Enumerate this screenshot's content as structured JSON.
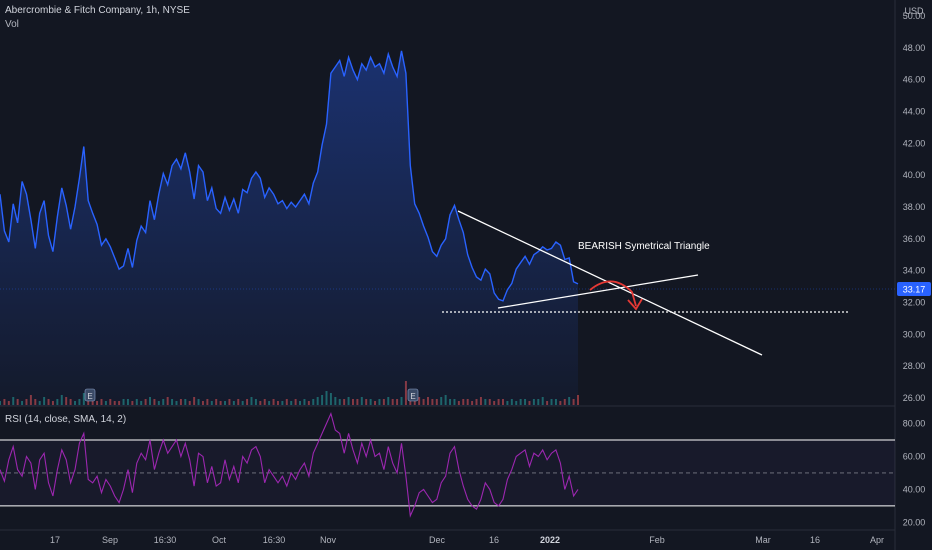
{
  "header": {
    "symbol_title": "Abercrombie & Fitch Company, 1h, NYSE",
    "volume_label": "Vol",
    "currency": "USD"
  },
  "rsi": {
    "label": "RSI (14, close, SMA, 14, 2)",
    "ticks": [
      "80.00",
      "60.00",
      "40.00",
      "20.00"
    ],
    "tick_values": [
      80,
      60,
      40,
      20
    ],
    "upper_band": 70,
    "middle_band": 50,
    "lower_band": 30,
    "ylim": [
      16,
      90
    ]
  },
  "colors": {
    "background": "#131722",
    "price_line": "#2962ff",
    "rsi_line": "#9c27b0",
    "trendline": "#ffffff",
    "arrow": "#e53935",
    "last_price_bg": "#2962ff",
    "volume_up": "#26a69a",
    "volume_down": "#ef5350"
  },
  "chart_data": {
    "type": "line",
    "title": "Abercrombie & Fitch Company, 1h, NYSE",
    "y_axis": {
      "ticks": [
        "50.00",
        "48.00",
        "46.00",
        "44.00",
        "42.00",
        "40.00",
        "38.00",
        "36.00",
        "34.00",
        "32.00",
        "30.00",
        "28.00",
        "26.00"
      ],
      "tick_values": [
        50,
        48,
        46,
        44,
        42,
        40,
        38,
        36,
        34,
        32,
        30,
        28,
        26
      ],
      "ylim": [
        25.5,
        51
      ]
    },
    "x_axis": {
      "ticks": [
        "17",
        "Sep",
        "16:30",
        "Oct",
        "16:30",
        "Nov",
        "Dec",
        "16",
        "2022",
        "Feb",
        "Mar",
        "16",
        "Apr"
      ]
    },
    "last_price": "33.17",
    "series": [
      {
        "values": [
          38.8,
          36.5,
          35.8,
          38.2,
          37.0,
          39.6,
          38.8,
          37.2,
          35.4,
          37.6,
          38.4,
          36.2,
          35.2,
          37.4,
          39.2,
          38.1,
          36.6,
          38.0,
          39.8,
          41.8,
          38.4,
          37.6,
          36.9,
          35.6,
          36.0,
          35.5,
          34.8,
          34.1,
          34.3,
          35.4,
          34.2,
          35.9,
          36.8,
          36.4,
          38.4,
          37.2,
          38.8,
          40.1,
          39.4,
          40.6,
          41.0,
          40.4,
          41.4,
          40.2,
          38.5,
          40.6,
          40.2,
          38.4,
          39.2,
          37.9,
          37.6,
          38.6,
          37.8,
          38.5,
          37.6,
          39.1,
          38.9,
          39.8,
          40.2,
          39.8,
          38.6,
          39.2,
          38.8,
          38.2,
          38.4,
          37.9,
          38.3,
          38.0,
          38.4,
          38.8,
          38.2,
          39.5,
          40.2,
          41.9,
          43.2,
          46.4,
          46.8,
          47.2,
          46.2,
          47.4,
          46.6,
          46.0,
          47.0,
          46.6,
          47.4,
          46.8,
          47.0,
          46.4,
          47.6,
          46.8,
          46.2,
          47.8,
          46.4,
          40.6,
          38.2,
          37.6,
          36.8,
          36.1,
          35.2,
          34.9,
          35.6,
          36.0,
          37.5,
          38.1,
          37.2,
          36.4,
          35.0,
          34.2,
          33.6,
          33.4,
          34.1,
          33.8,
          32.6,
          32.2,
          32.1,
          32.8,
          33.2,
          34.1,
          34.5,
          34.9,
          34.4,
          35.0,
          35.2,
          35.5,
          35.3,
          35.4,
          35.8,
          35.6,
          34.7,
          34.8,
          33.3,
          33.17
        ],
        "volume": [
          2,
          3,
          2,
          4,
          3,
          2,
          3,
          5,
          3,
          2,
          4,
          3,
          2,
          3,
          5,
          4,
          3,
          2,
          3,
          6,
          3,
          2,
          2,
          3,
          2,
          3,
          2,
          2,
          3,
          3,
          2,
          3,
          2,
          3,
          4,
          3,
          2,
          3,
          4,
          3,
          2,
          3,
          3,
          2,
          4,
          3,
          2,
          3,
          2,
          3,
          2,
          2,
          3,
          2,
          3,
          2,
          3,
          4,
          3,
          2,
          3,
          2,
          3,
          2,
          2,
          3,
          2,
          3,
          2,
          3,
          2,
          3,
          4,
          5,
          7,
          6,
          4,
          3,
          3,
          4,
          3,
          3,
          4,
          3,
          3,
          2,
          3,
          3,
          4,
          3,
          3,
          4,
          12,
          6,
          5,
          4,
          3,
          4,
          3,
          3,
          4,
          5,
          3,
          3,
          2,
          3,
          3,
          2,
          3,
          4,
          3,
          3,
          2,
          3,
          3,
          2,
          3,
          2,
          3,
          3,
          2,
          3,
          3,
          4,
          2,
          3,
          3,
          2,
          3,
          4,
          3,
          5
        ],
        "rsi": [
          52,
          45,
          58,
          66,
          52,
          48,
          60,
          56,
          40,
          58,
          62,
          44,
          36,
          52,
          64,
          58,
          44,
          52,
          68,
          74,
          46,
          44,
          48,
          38,
          46,
          42,
          36,
          32,
          40,
          52,
          38,
          56,
          62,
          58,
          70,
          52,
          62,
          70,
          62,
          66,
          70,
          60,
          68,
          58,
          42,
          62,
          60,
          44,
          54,
          42,
          44,
          58,
          46,
          54,
          44,
          60,
          56,
          64,
          66,
          60,
          44,
          52,
          48,
          44,
          48,
          42,
          50,
          46,
          52,
          56,
          48,
          62,
          68,
          74,
          80,
          86,
          76,
          74,
          62,
          74,
          64,
          56,
          68,
          60,
          70,
          60,
          62,
          52,
          66,
          56,
          50,
          68,
          48,
          24,
          30,
          38,
          40,
          36,
          32,
          34,
          44,
          48,
          62,
          66,
          52,
          42,
          34,
          30,
          28,
          34,
          44,
          40,
          32,
          30,
          34,
          46,
          52,
          60,
          62,
          64,
          54,
          62,
          60,
          64,
          58,
          62,
          64,
          56,
          40,
          48,
          36,
          40
        ]
      }
    ],
    "annotations": [
      {
        "type": "text",
        "text": "BEARISH Symetrical Triangle"
      }
    ]
  }
}
